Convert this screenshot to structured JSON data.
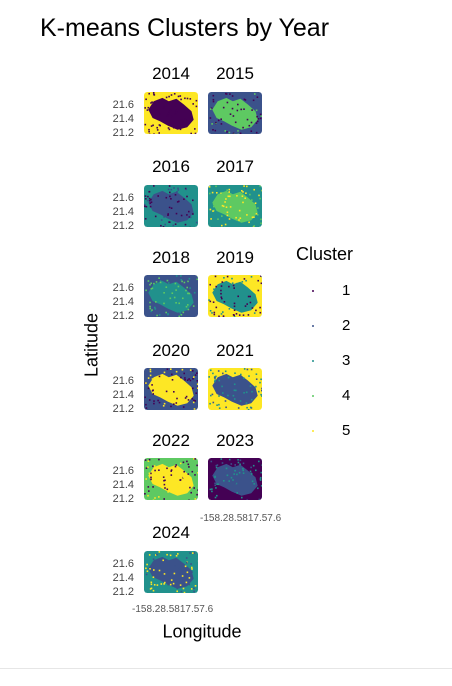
{
  "chart_data": {
    "type": "scatter",
    "title": "K-means Clusters by Year",
    "xlabel": "Longitude",
    "ylabel": "Latitude",
    "y_ticks": [
      "21.6",
      "21.4",
      "21.2"
    ],
    "x_tick_text": "-158.28.5817.57.6",
    "legend": {
      "title": "Cluster",
      "placement": "right",
      "entries": [
        {
          "label": "1",
          "color": "#440154"
        },
        {
          "label": "2",
          "color": "#3b528b"
        },
        {
          "label": "3",
          "color": "#21918c"
        },
        {
          "label": "4",
          "color": "#5ec962"
        },
        {
          "label": "5",
          "color": "#fde725"
        }
      ]
    },
    "panels": [
      {
        "year": "2014",
        "background": "5",
        "island": "1",
        "speckle": "1"
      },
      {
        "year": "2015",
        "background": "2",
        "island": "4",
        "speckle": "1"
      },
      {
        "year": "2016",
        "background": "3",
        "island": "2",
        "speckle": "1"
      },
      {
        "year": "2017",
        "background": "3",
        "island": "4",
        "speckle": "5"
      },
      {
        "year": "2018",
        "background": "2",
        "island": "3",
        "speckle": "4"
      },
      {
        "year": "2019",
        "background": "5",
        "island": "3",
        "speckle": "1"
      },
      {
        "year": "2020",
        "background": "2",
        "island": "5",
        "speckle": "1"
      },
      {
        "year": "2021",
        "background": "5",
        "island": "2",
        "speckle": "3"
      },
      {
        "year": "2022",
        "background": "4",
        "island": "5",
        "speckle": "1"
      },
      {
        "year": "2023",
        "background": "1",
        "island": "2",
        "speckle": "3"
      },
      {
        "year": "2024",
        "background": "3",
        "island": "2",
        "speckle": "5"
      }
    ]
  }
}
